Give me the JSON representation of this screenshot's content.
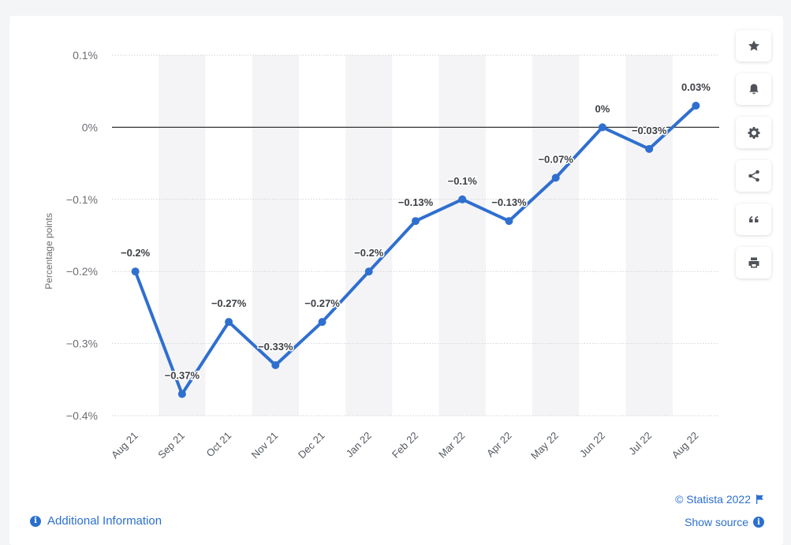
{
  "chart_data": {
    "type": "line",
    "categories": [
      "Aug 21",
      "Sep 21",
      "Oct 21",
      "Nov 21",
      "Dec 21",
      "Jan 22",
      "Feb 22",
      "Mar 22",
      "Apr 22",
      "May 22",
      "Jun 22",
      "Jul 22",
      "Aug 22"
    ],
    "values": [
      -0.2,
      -0.37,
      -0.27,
      -0.33,
      -0.27,
      -0.2,
      -0.13,
      -0.1,
      -0.13,
      -0.07,
      0,
      -0.03,
      0.03
    ],
    "data_labels": [
      "−0.2%",
      "−0.37%",
      "−0.27%",
      "−0.33%",
      "−0.27%",
      "−0.2%",
      "−0.13%",
      "−0.1%",
      "−0.13%",
      "−0.07%",
      "0%",
      "−0.03%",
      "0.03%"
    ],
    "ylabel": "Percentage points",
    "xlabel": "",
    "ylim": [
      -0.4,
      0.1
    ],
    "yticks": [
      0.1,
      0,
      -0.1,
      -0.2,
      -0.3,
      -0.4
    ],
    "ytick_labels": [
      "0.1%",
      "0%",
      "−0.1%",
      "−0.2%",
      "−0.3%",
      "−0.4%"
    ],
    "grid": true,
    "line_color": "#2f6fcf",
    "zero_line_color": "#333333",
    "band_color": "#f4f4f6"
  },
  "toolbar": {
    "buttons": [
      "star-icon",
      "bell-icon",
      "gear-icon",
      "share-icon",
      "quote-icon",
      "print-icon"
    ]
  },
  "footer": {
    "additional_info": "Additional Information",
    "copyright": "© Statista 2022",
    "show_source": "Show source"
  },
  "colors": {
    "accent": "#2b6fce"
  }
}
